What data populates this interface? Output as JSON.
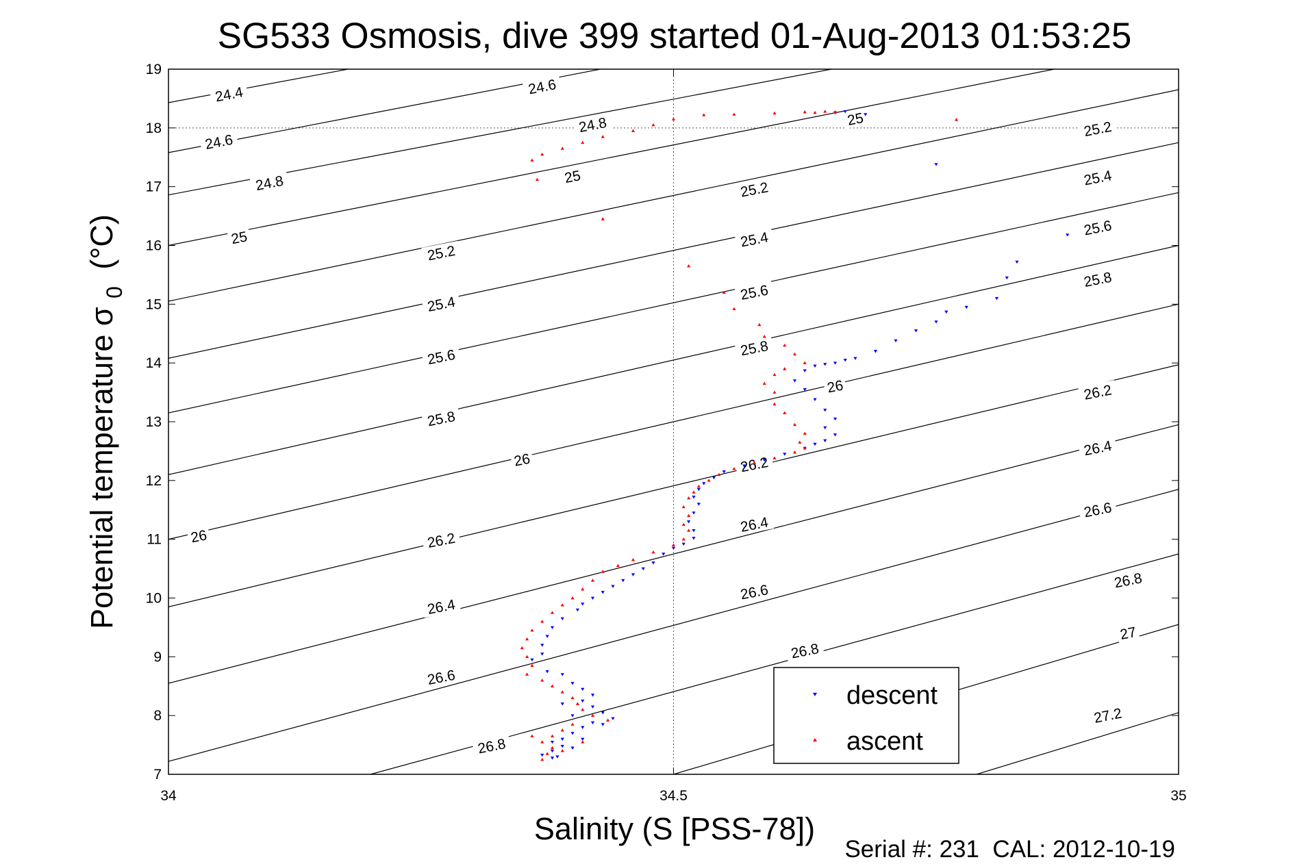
{
  "chart_data": {
    "type": "scatter",
    "title": "SG533 Osmosis, dive 399 started 01-Aug-2013 01:53:25",
    "xlabel": "Salinity (S [PSS-78])",
    "ylabel_main": "Potential temperature σ",
    "ylabel_sub": "0",
    "ylabel_unit": "(°C)",
    "xlim": [
      34,
      35
    ],
    "ylim": [
      7,
      19
    ],
    "x_ticks": [
      {
        "value": 34,
        "label": "34"
      },
      {
        "value": 34.5,
        "label": "34.5"
      },
      {
        "value": 35,
        "label": "35"
      }
    ],
    "y_ticks": [
      {
        "value": 7,
        "label": "7"
      },
      {
        "value": 8,
        "label": "8"
      },
      {
        "value": 9,
        "label": "9"
      },
      {
        "value": 10,
        "label": "10"
      },
      {
        "value": 11,
        "label": "11"
      },
      {
        "value": 12,
        "label": "12"
      },
      {
        "value": 13,
        "label": "13"
      },
      {
        "value": 14,
        "label": "14"
      },
      {
        "value": 15,
        "label": "15"
      },
      {
        "value": 16,
        "label": "16"
      },
      {
        "value": 17,
        "label": "17"
      },
      {
        "value": 18,
        "label": "18"
      },
      {
        "value": 19,
        "label": "19"
      }
    ],
    "grid": "dotted lines at x = 34.5 and y = 18",
    "legend_placement": "bottom-center",
    "isopycnals": [
      {
        "label": "24.4",
        "points": [
          [
            34.0,
            18.43
          ],
          [
            35.0,
            21.63
          ]
        ]
      },
      {
        "label": "24.6",
        "points": [
          [
            34.0,
            17.58
          ],
          [
            35.0,
            20.9
          ]
        ]
      },
      {
        "label": "24.8",
        "points": [
          [
            34.0,
            16.86
          ],
          [
            35.0,
            20.12
          ]
        ]
      },
      {
        "label": "25",
        "points": [
          [
            34.0,
            16.0
          ],
          [
            35.0,
            19.42
          ]
        ]
      },
      {
        "label": "25.2",
        "points": [
          [
            34.0,
            15.05
          ],
          [
            35.0,
            18.65
          ]
        ]
      },
      {
        "label": "25.4",
        "points": [
          [
            34.0,
            14.08
          ],
          [
            35.0,
            17.75
          ]
        ]
      },
      {
        "label": "25.6",
        "points": [
          [
            34.0,
            13.15
          ],
          [
            35.0,
            16.9
          ]
        ]
      },
      {
        "label": "25.8",
        "points": [
          [
            34.0,
            12.1
          ],
          [
            35.0,
            16.0
          ]
        ]
      },
      {
        "label": "26",
        "points": [
          [
            34.0,
            11.0
          ],
          [
            35.0,
            15.0
          ]
        ]
      },
      {
        "label": "26.2",
        "points": [
          [
            34.0,
            9.85
          ],
          [
            35.0,
            13.97
          ]
        ]
      },
      {
        "label": "26.4",
        "points": [
          [
            34.0,
            8.55
          ],
          [
            35.0,
            12.95
          ]
        ]
      },
      {
        "label": "26.6",
        "points": [
          [
            34.0,
            7.22
          ],
          [
            35.0,
            11.85
          ]
        ]
      },
      {
        "label": "26.8",
        "points": [
          [
            34.2,
            7.0
          ],
          [
            35.0,
            10.75
          ]
        ]
      },
      {
        "label": "27",
        "points": [
          [
            34.5,
            7.0
          ],
          [
            35.0,
            9.55
          ]
        ]
      },
      {
        "label": "27.2",
        "points": [
          [
            34.8,
            7.0
          ],
          [
            35.0,
            8.05
          ]
        ]
      }
    ],
    "contour_labels": [
      {
        "text": "24.4",
        "x": 34.06,
        "y": 18.57
      },
      {
        "text": "24.6",
        "x": 34.37,
        "y": 18.7
      },
      {
        "text": "24.6",
        "x": 34.05,
        "y": 17.76
      },
      {
        "text": "24.8",
        "x": 34.42,
        "y": 18.05
      },
      {
        "text": "24.8",
        "x": 34.1,
        "y": 17.06
      },
      {
        "text": "25",
        "x": 34.68,
        "y": 18.15
      },
      {
        "text": "25",
        "x": 34.4,
        "y": 17.17
      },
      {
        "text": "25",
        "x": 34.07,
        "y": 16.13
      },
      {
        "text": "25.2",
        "x": 34.92,
        "y": 17.98
      },
      {
        "text": "25.2",
        "x": 34.58,
        "y": 16.95
      },
      {
        "text": "25.2",
        "x": 34.27,
        "y": 15.87
      },
      {
        "text": "25.4",
        "x": 34.92,
        "y": 17.15
      },
      {
        "text": "25.4",
        "x": 34.58,
        "y": 16.1
      },
      {
        "text": "25.4",
        "x": 34.27,
        "y": 15.0
      },
      {
        "text": "25.6",
        "x": 34.92,
        "y": 16.3
      },
      {
        "text": "25.6",
        "x": 34.58,
        "y": 15.2
      },
      {
        "text": "25.6",
        "x": 34.27,
        "y": 14.1
      },
      {
        "text": "25.8",
        "x": 34.92,
        "y": 15.42
      },
      {
        "text": "25.8",
        "x": 34.58,
        "y": 14.25
      },
      {
        "text": "25.8",
        "x": 34.27,
        "y": 13.05
      },
      {
        "text": "26",
        "x": 34.66,
        "y": 13.6
      },
      {
        "text": "26",
        "x": 34.35,
        "y": 12.35
      },
      {
        "text": "26",
        "x": 34.03,
        "y": 11.05
      },
      {
        "text": "26.2",
        "x": 34.92,
        "y": 13.5
      },
      {
        "text": "26.2",
        "x": 34.58,
        "y": 12.27
      },
      {
        "text": "26.2",
        "x": 34.27,
        "y": 10.98
      },
      {
        "text": "26.4",
        "x": 34.92,
        "y": 12.55
      },
      {
        "text": "26.4",
        "x": 34.58,
        "y": 11.25
      },
      {
        "text": "26.4",
        "x": 34.27,
        "y": 9.85
      },
      {
        "text": "26.6",
        "x": 34.92,
        "y": 11.5
      },
      {
        "text": "26.6",
        "x": 34.58,
        "y": 10.1
      },
      {
        "text": "26.6",
        "x": 34.27,
        "y": 8.65
      },
      {
        "text": "26.8",
        "x": 34.95,
        "y": 10.3
      },
      {
        "text": "26.8",
        "x": 34.63,
        "y": 9.1
      },
      {
        "text": "26.8",
        "x": 34.32,
        "y": 7.48
      },
      {
        "text": "27",
        "x": 34.95,
        "y": 9.4
      },
      {
        "text": "27.2",
        "x": 34.93,
        "y": 8.0
      }
    ],
    "series": [
      {
        "name": "descent",
        "color": "#0000ff",
        "marker": "triangle-down",
        "points": [
          [
            34.67,
            18.28
          ],
          [
            34.69,
            18.23
          ],
          [
            34.66,
            18.26
          ],
          [
            34.76,
            17.38
          ],
          [
            34.89,
            16.18
          ],
          [
            34.84,
            15.72
          ],
          [
            34.83,
            15.45
          ],
          [
            34.82,
            15.1
          ],
          [
            34.79,
            14.95
          ],
          [
            34.77,
            14.87
          ],
          [
            34.76,
            14.7
          ],
          [
            34.74,
            14.55
          ],
          [
            34.72,
            14.38
          ],
          [
            34.7,
            14.2
          ],
          [
            34.68,
            14.08
          ],
          [
            34.67,
            14.05
          ],
          [
            34.66,
            14.0
          ],
          [
            34.65,
            13.98
          ],
          [
            34.64,
            13.95
          ],
          [
            34.63,
            13.87
          ],
          [
            34.62,
            13.7
          ],
          [
            34.63,
            13.55
          ],
          [
            34.64,
            13.38
          ],
          [
            34.65,
            13.2
          ],
          [
            34.66,
            13.05
          ],
          [
            34.65,
            12.9
          ],
          [
            34.66,
            12.78
          ],
          [
            34.65,
            12.68
          ],
          [
            34.64,
            12.62
          ],
          [
            34.63,
            12.55
          ],
          [
            34.61,
            12.45
          ],
          [
            34.59,
            12.35
          ],
          [
            34.57,
            12.25
          ],
          [
            34.55,
            12.15
          ],
          [
            34.54,
            12.05
          ],
          [
            34.53,
            11.95
          ],
          [
            34.525,
            11.85
          ],
          [
            34.52,
            11.72
          ],
          [
            34.525,
            11.6
          ],
          [
            34.52,
            11.45
          ],
          [
            34.515,
            11.3
          ],
          [
            34.52,
            11.15
          ],
          [
            34.52,
            11.02
          ],
          [
            34.51,
            10.92
          ],
          [
            34.5,
            10.85
          ],
          [
            34.49,
            10.75
          ],
          [
            34.48,
            10.6
          ],
          [
            34.47,
            10.5
          ],
          [
            34.46,
            10.4
          ],
          [
            34.45,
            10.3
          ],
          [
            34.44,
            10.2
          ],
          [
            34.43,
            10.1
          ],
          [
            34.42,
            10.0
          ],
          [
            34.41,
            9.9
          ],
          [
            34.405,
            9.8
          ],
          [
            34.39,
            9.65
          ],
          [
            34.38,
            9.5
          ],
          [
            34.375,
            9.35
          ],
          [
            34.37,
            9.2
          ],
          [
            34.37,
            9.05
          ],
          [
            34.36,
            8.95
          ],
          [
            34.375,
            8.75
          ],
          [
            34.39,
            8.7
          ],
          [
            34.4,
            8.55
          ],
          [
            34.41,
            8.45
          ],
          [
            34.42,
            8.35
          ],
          [
            34.41,
            8.25
          ],
          [
            34.42,
            8.15
          ],
          [
            34.43,
            8.05
          ],
          [
            34.44,
            7.95
          ],
          [
            34.42,
            7.88
          ],
          [
            34.41,
            7.8
          ],
          [
            34.4,
            7.7
          ],
          [
            34.39,
            7.6
          ],
          [
            34.38,
            7.55
          ],
          [
            34.39,
            7.48
          ],
          [
            34.38,
            7.4
          ],
          [
            34.37,
            7.33
          ],
          [
            34.38,
            7.28
          ],
          [
            34.385,
            7.3
          ],
          [
            34.4,
            7.45
          ],
          [
            34.41,
            7.6
          ],
          [
            34.43,
            7.85
          ],
          [
            34.4,
            8.0
          ],
          [
            34.39,
            8.2
          ]
        ]
      },
      {
        "name": "ascent",
        "color": "#ff0000",
        "marker": "triangle-up",
        "points": [
          [
            34.65,
            18.28
          ],
          [
            34.66,
            18.27
          ],
          [
            34.64,
            18.26
          ],
          [
            34.63,
            18.27
          ],
          [
            34.6,
            18.25
          ],
          [
            34.56,
            18.23
          ],
          [
            34.53,
            18.22
          ],
          [
            34.5,
            18.15
          ],
          [
            34.48,
            18.05
          ],
          [
            34.46,
            17.95
          ],
          [
            34.43,
            17.85
          ],
          [
            34.41,
            17.75
          ],
          [
            34.39,
            17.65
          ],
          [
            34.37,
            17.55
          ],
          [
            34.36,
            17.45
          ],
          [
            34.365,
            17.12
          ],
          [
            34.43,
            16.45
          ],
          [
            34.78,
            18.14
          ],
          [
            34.515,
            15.65
          ],
          [
            34.55,
            15.2
          ],
          [
            34.56,
            14.92
          ],
          [
            34.585,
            14.65
          ],
          [
            34.59,
            14.45
          ],
          [
            34.61,
            14.3
          ],
          [
            34.62,
            14.15
          ],
          [
            34.63,
            14.0
          ],
          [
            34.61,
            13.9
          ],
          [
            34.6,
            13.8
          ],
          [
            34.59,
            13.65
          ],
          [
            34.6,
            13.5
          ],
          [
            34.6,
            13.3
          ],
          [
            34.61,
            13.15
          ],
          [
            34.62,
            12.95
          ],
          [
            34.63,
            12.8
          ],
          [
            34.625,
            12.65
          ],
          [
            34.63,
            12.55
          ],
          [
            34.62,
            12.48
          ],
          [
            34.6,
            12.38
          ],
          [
            34.58,
            12.3
          ],
          [
            34.56,
            12.2
          ],
          [
            34.545,
            12.1
          ],
          [
            34.535,
            12.0
          ],
          [
            34.525,
            11.9
          ],
          [
            34.52,
            11.8
          ],
          [
            34.515,
            11.7
          ],
          [
            34.51,
            11.55
          ],
          [
            34.515,
            11.4
          ],
          [
            34.51,
            11.25
          ],
          [
            34.515,
            11.15
          ],
          [
            34.51,
            11.0
          ],
          [
            34.5,
            10.9
          ],
          [
            34.48,
            10.78
          ],
          [
            34.46,
            10.65
          ],
          [
            34.445,
            10.55
          ],
          [
            34.43,
            10.45
          ],
          [
            34.42,
            10.3
          ],
          [
            34.41,
            10.15
          ],
          [
            34.4,
            10.0
          ],
          [
            34.39,
            9.88
          ],
          [
            34.38,
            9.75
          ],
          [
            34.37,
            9.6
          ],
          [
            34.36,
            9.45
          ],
          [
            34.355,
            9.3
          ],
          [
            34.35,
            9.15
          ],
          [
            34.355,
            9.0
          ],
          [
            34.36,
            8.85
          ],
          [
            34.355,
            8.7
          ],
          [
            34.37,
            8.6
          ],
          [
            34.38,
            8.5
          ],
          [
            34.39,
            8.4
          ],
          [
            34.4,
            8.3
          ],
          [
            34.405,
            8.2
          ],
          [
            34.41,
            8.1
          ],
          [
            34.42,
            8.0
          ],
          [
            34.435,
            7.92
          ],
          [
            34.4,
            7.85
          ],
          [
            34.39,
            7.75
          ],
          [
            34.38,
            7.65
          ],
          [
            34.37,
            7.55
          ],
          [
            34.38,
            7.45
          ],
          [
            34.375,
            7.35
          ],
          [
            34.37,
            7.25
          ],
          [
            34.36,
            7.65
          ],
          [
            34.39,
            7.4
          ],
          [
            34.41,
            7.55
          ]
        ]
      }
    ],
    "legend": [
      {
        "label": "descent",
        "color": "#0000ff",
        "marker": "triangle-down"
      },
      {
        "label": "ascent",
        "color": "#ff0000",
        "marker": "triangle-up"
      }
    ]
  },
  "footer": {
    "serial_text": "Serial #: 231  CAL: 2012-10-19"
  }
}
